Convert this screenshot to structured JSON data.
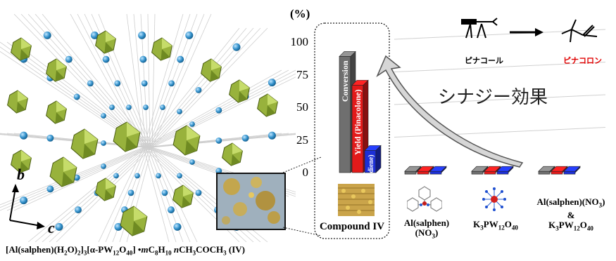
{
  "crystal": {
    "axis_b": "b",
    "axis_c": "c",
    "formula": {
      "p1": "[Al(salphen)(H",
      "s1": "2",
      "p2": "O)",
      "s2": "2",
      "p3": "]",
      "s3": "3",
      "p4": "[α-PW",
      "s4": "12",
      "p5": "O",
      "s5": "40",
      "p6": "] •",
      "p7": "m",
      "p8": "C",
      "s6": "8",
      "p9": "H",
      "s7": "10",
      "p10": " ",
      "p11": "n",
      "p12": "CH",
      "s8": "3",
      "p13": "COCH",
      "s9": "3",
      "p14": " (IV)"
    }
  },
  "reaction": {
    "reactant": "ピナコール",
    "product": "ピナコロン",
    "product_color": "#e00000"
  },
  "synergy_label": "シナジー効果",
  "chart_data": {
    "type": "bar",
    "y_unit_label": "(%)",
    "ylim": [
      0,
      100
    ],
    "yticks": [
      0,
      25,
      50,
      75,
      100
    ],
    "series": [
      {
        "name": "Conversion",
        "color": "#6f6f6f"
      },
      {
        "name": "Yield (Pinacolone)",
        "color": "#e21a1a"
      },
      {
        "name": "Yield (Butadiene)",
        "color": "#1c2fd6"
      }
    ],
    "categories": [
      {
        "label": "Compound IV",
        "values": [
          89,
          67,
          17
        ]
      },
      {
        "label_parts": [
          "Al(salphen)(NO",
          "3",
          ")"
        ],
        "values": [
          1,
          1,
          1
        ]
      },
      {
        "label_parts": [
          "K",
          "3",
          "PW",
          "12",
          "O",
          "40"
        ],
        "values": [
          1,
          1,
          1
        ]
      },
      {
        "label_parts": [
          "Al(salphen)(NO",
          "3",
          ")",
          "&",
          "K",
          "3",
          "PW",
          "12",
          "O",
          "40"
        ],
        "values": [
          1,
          1,
          1
        ]
      }
    ]
  }
}
